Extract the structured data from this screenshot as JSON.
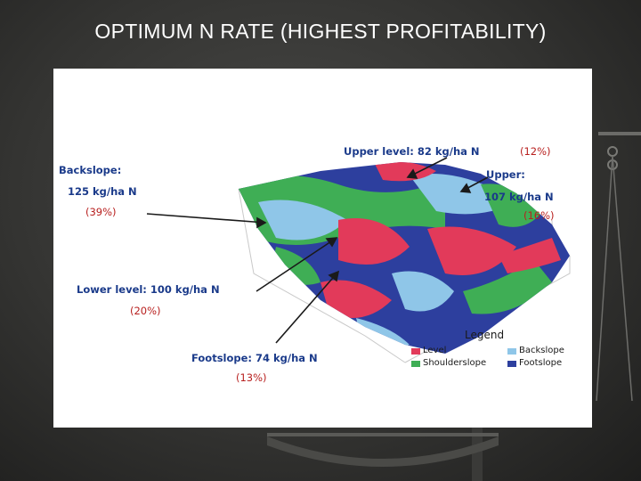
{
  "slide": {
    "title": "OPTIMUM N RATE (HIGHEST PROFITABILITY)"
  },
  "diagram": {
    "labels": {
      "backslope": {
        "name": "Backslope:",
        "rate": "125 kg/ha N",
        "pct": "(39%)"
      },
      "upper_level": {
        "name": "Upper level: 82 kg/ha N",
        "pct": "(12%)"
      },
      "upper": {
        "name": "Upper:",
        "rate": "107 kg/ha N",
        "pct": "(16%)"
      },
      "lower_level": {
        "name": "Lower level: 100 kg/ha N",
        "pct": "(20%)"
      },
      "footslope": {
        "name": "Footslope: 74 kg/ha N",
        "pct": "(13%)"
      }
    },
    "legend": {
      "title": "Legend",
      "items": [
        {
          "label": "Level",
          "color": "#e23a5a"
        },
        {
          "label": "Backslope",
          "color": "#8fc6e8"
        },
        {
          "label": "Shoulderslope",
          "color": "#3fae55"
        },
        {
          "label": "Footslope",
          "color": "#2d3f9e"
        }
      ]
    },
    "colors": {
      "label_text": "#1a3a8a",
      "percent_text": "#b8201f"
    }
  }
}
